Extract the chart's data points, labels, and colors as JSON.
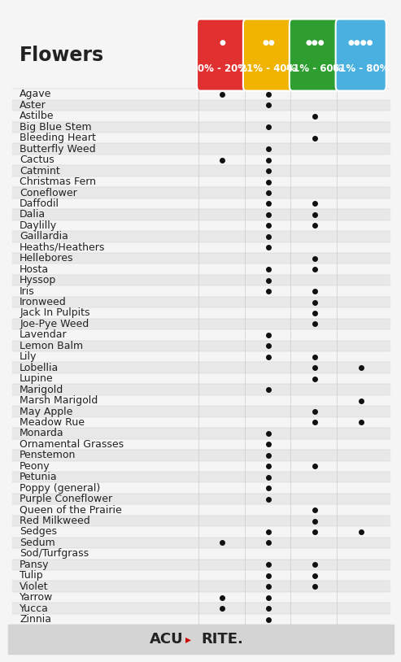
{
  "title": "Flowers",
  "columns": [
    "0% - 20%",
    "21% - 40%",
    "41% - 60%",
    "61% - 80%"
  ],
  "col_colors": [
    "#e03030",
    "#f0b400",
    "#2e9e30",
    "#4ab0e0"
  ],
  "flowers": [
    "Agave",
    "Aster",
    "Astilbe",
    "Big Blue Stem",
    "Bleeding Heart",
    "Butterfly Weed",
    "Cactus",
    "Catmint",
    "Christmas Fern",
    "Coneflower",
    "Daffodil",
    "Dalia",
    "Daylilly",
    "Gaillardia",
    "Heaths/Heathers",
    "Hellebores",
    "Hosta",
    "Hyssop",
    "Iris",
    "Ironweed",
    "Jack In Pulpits",
    "Joe-Pye Weed",
    "Lavendar",
    "Lemon Balm",
    "Lily",
    "Lobellia",
    "Lupine",
    "Marigold",
    "Marsh Marigold",
    "May Apple",
    "Meadow Rue",
    "Monarda",
    "Ornamental Grasses",
    "Penstemon",
    "Peony",
    "Petunia",
    "Poppy (general)",
    "Purple Coneflower",
    "Queen of the Prairie",
    "Red Milkweed",
    "Sedges",
    "Sedum",
    "Sod/Turfgrass",
    "Pansy",
    "Tulip",
    "Violet",
    "Yarrow",
    "Yucca",
    "Zinnia"
  ],
  "dots": {
    "Agave": [
      1,
      1,
      0,
      0
    ],
    "Aster": [
      0,
      1,
      0,
      0
    ],
    "Astilbe": [
      0,
      0,
      1,
      0
    ],
    "Big Blue Stem": [
      0,
      1,
      0,
      0
    ],
    "Bleeding Heart": [
      0,
      0,
      1,
      0
    ],
    "Butterfly Weed": [
      0,
      1,
      0,
      0
    ],
    "Cactus": [
      1,
      1,
      0,
      0
    ],
    "Catmint": [
      0,
      1,
      0,
      0
    ],
    "Christmas Fern": [
      0,
      1,
      0,
      0
    ],
    "Coneflower": [
      0,
      1,
      0,
      0
    ],
    "Daffodil": [
      0,
      1,
      1,
      0
    ],
    "Dalia": [
      0,
      1,
      1,
      0
    ],
    "Daylilly": [
      0,
      1,
      1,
      0
    ],
    "Gaillardia": [
      0,
      1,
      0,
      0
    ],
    "Heaths/Heathers": [
      0,
      1,
      0,
      0
    ],
    "Hellebores": [
      0,
      0,
      1,
      0
    ],
    "Hosta": [
      0,
      1,
      1,
      0
    ],
    "Hyssop": [
      0,
      1,
      0,
      0
    ],
    "Iris": [
      0,
      1,
      1,
      0
    ],
    "Ironweed": [
      0,
      0,
      1,
      0
    ],
    "Jack In Pulpits": [
      0,
      0,
      1,
      0
    ],
    "Joe-Pye Weed": [
      0,
      0,
      1,
      0
    ],
    "Lavendar": [
      0,
      1,
      0,
      0
    ],
    "Lemon Balm": [
      0,
      1,
      0,
      0
    ],
    "Lily": [
      0,
      1,
      1,
      0
    ],
    "Lobellia": [
      0,
      0,
      1,
      1
    ],
    "Lupine": [
      0,
      0,
      1,
      0
    ],
    "Marigold": [
      0,
      1,
      0,
      0
    ],
    "Marsh Marigold": [
      0,
      0,
      0,
      1
    ],
    "May Apple": [
      0,
      0,
      1,
      0
    ],
    "Meadow Rue": [
      0,
      0,
      1,
      1
    ],
    "Monarda": [
      0,
      1,
      0,
      0
    ],
    "Ornamental Grasses": [
      0,
      1,
      0,
      0
    ],
    "Penstemon": [
      0,
      1,
      0,
      0
    ],
    "Peony": [
      0,
      1,
      1,
      0
    ],
    "Petunia": [
      0,
      1,
      0,
      0
    ],
    "Poppy (general)": [
      0,
      1,
      0,
      0
    ],
    "Purple Coneflower": [
      0,
      1,
      0,
      0
    ],
    "Queen of the Prairie": [
      0,
      0,
      1,
      0
    ],
    "Red Milkweed": [
      0,
      0,
      1,
      0
    ],
    "Sedges": [
      0,
      1,
      1,
      1
    ],
    "Sedum": [
      1,
      1,
      0,
      0
    ],
    "Sod/Turfgrass": [
      0,
      0,
      0,
      0
    ],
    "Pansy": [
      0,
      1,
      1,
      0
    ],
    "Tulip": [
      0,
      1,
      1,
      0
    ],
    "Violet": [
      0,
      1,
      1,
      0
    ],
    "Yarrow": [
      1,
      1,
      0,
      0
    ],
    "Yucca": [
      1,
      1,
      0,
      0
    ],
    "Zinnia": [
      0,
      1,
      0,
      0
    ]
  },
  "background_color": "#f5f5f5",
  "row_alt_color": "#e8e8e8",
  "footer_bg": "#d4d4d4",
  "dot_color": "#111111",
  "title_fontsize": 17,
  "row_fontsize": 9.0,
  "col_fontsize": 8.5,
  "logo_fontsize": 13
}
